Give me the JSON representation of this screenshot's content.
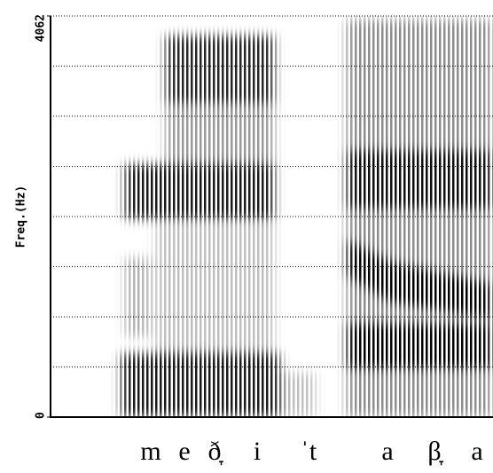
{
  "chart_data": {
    "type": "spectrogram",
    "ylabel": "Freq.(Hz)",
    "ylim": [
      0,
      4062
    ],
    "yticks": [
      0,
      4062
    ],
    "grid_divisions": 8,
    "segments": [
      "m",
      "e",
      "ð̞",
      "i",
      "ˈt",
      "a",
      "β̞",
      "a"
    ]
  }
}
